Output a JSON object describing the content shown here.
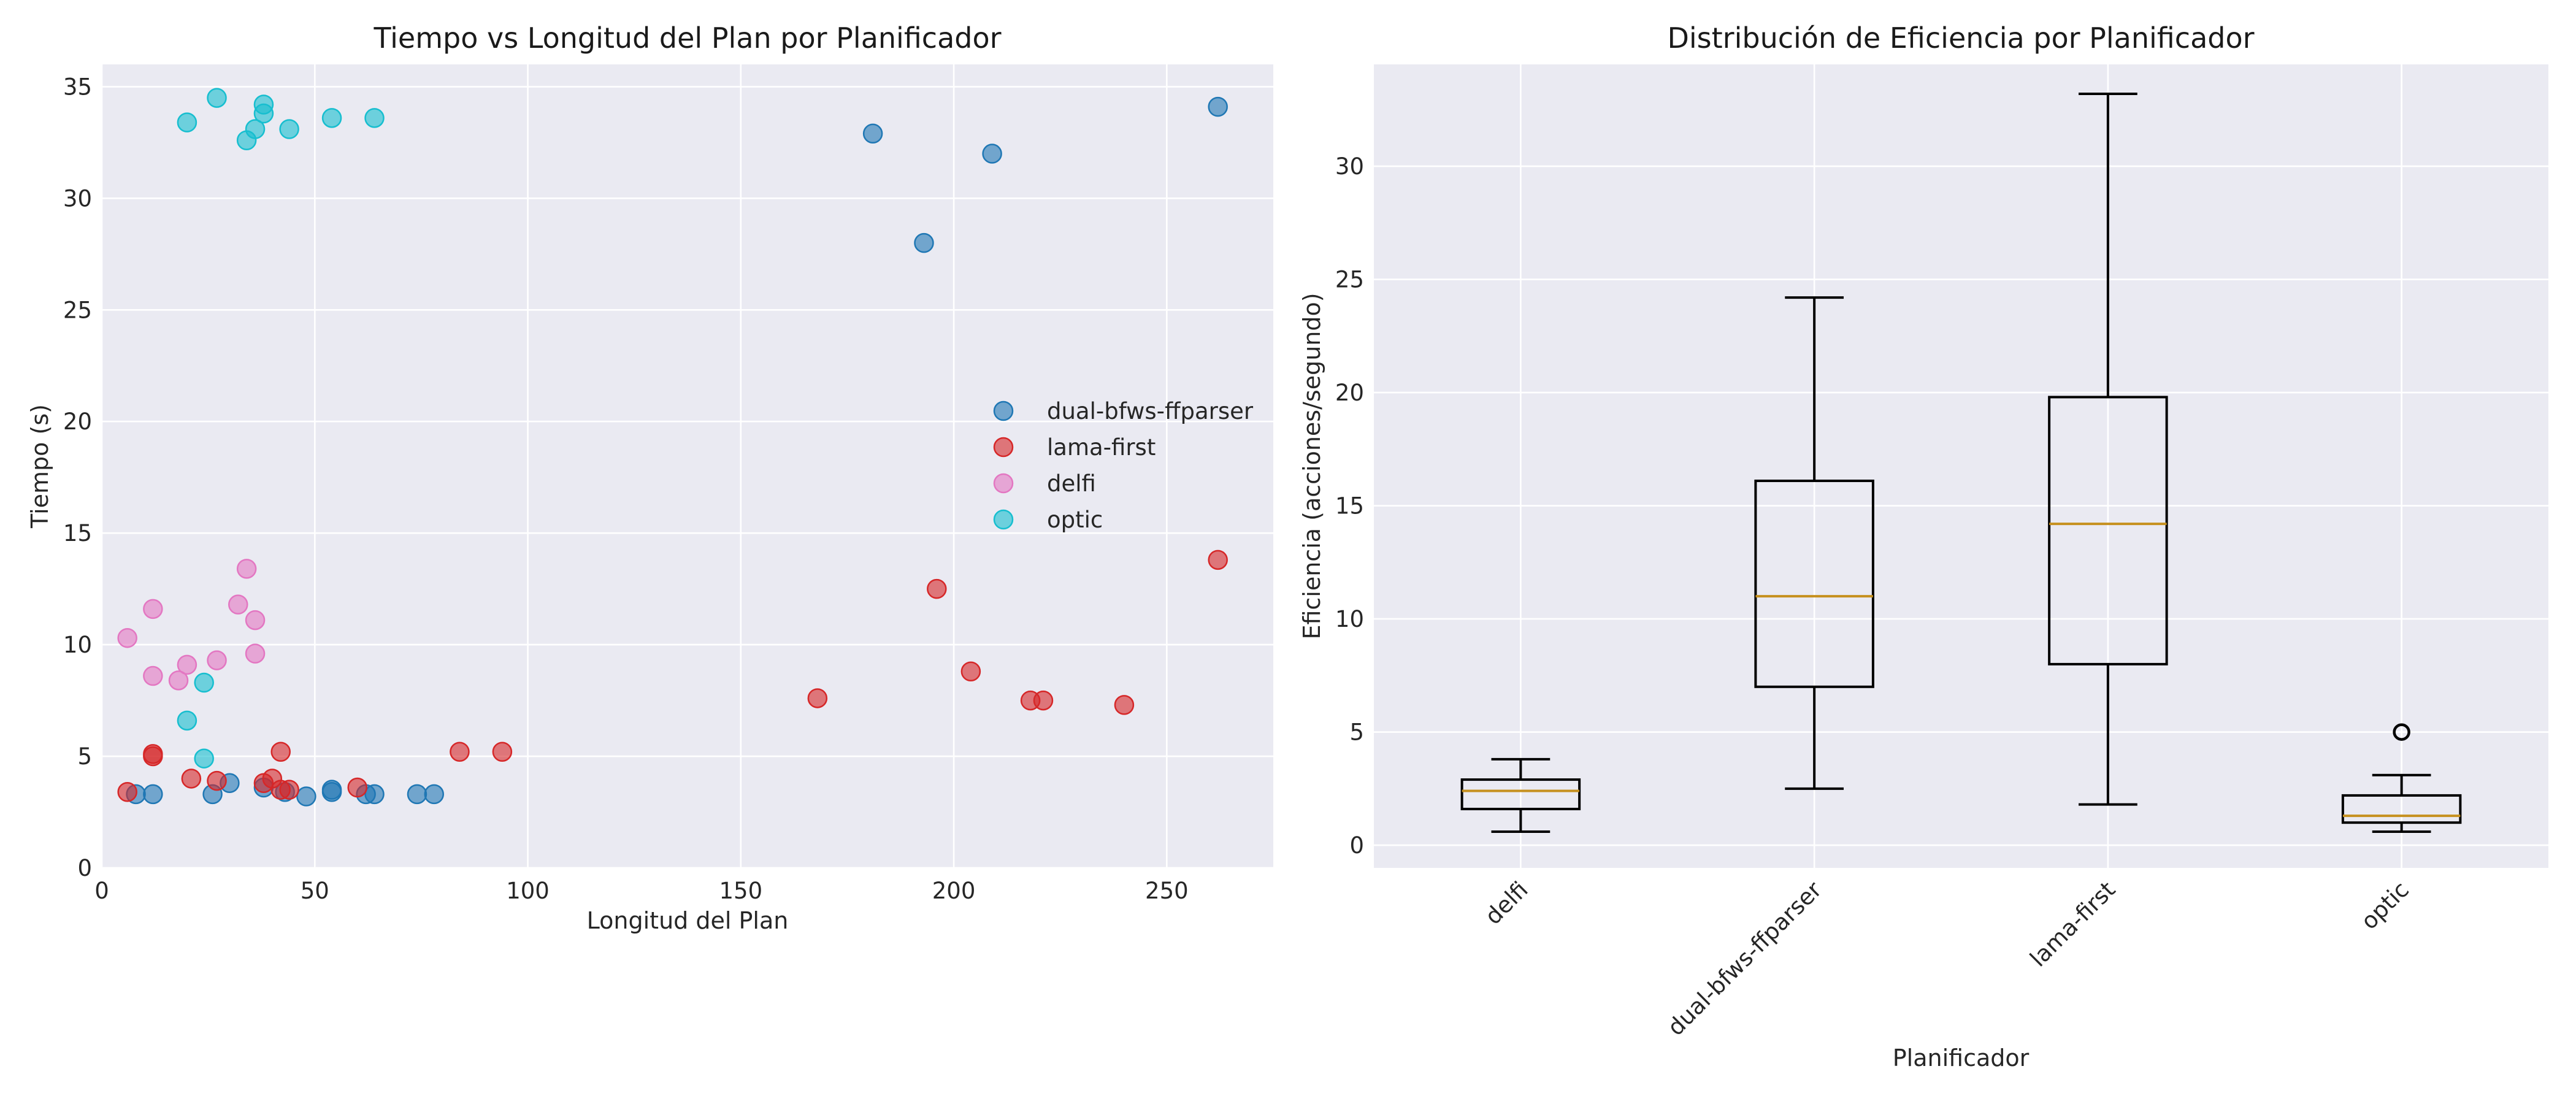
{
  "chart_data": [
    {
      "type": "scatter",
      "title": "Tiempo vs Longitud del Plan por Planificador",
      "xlabel": "Longitud del Plan",
      "ylabel": "Tiempo (s)",
      "xlim": [
        0,
        275
      ],
      "ylim": [
        0,
        36
      ],
      "xticks": [
        0,
        50,
        100,
        150,
        200,
        250
      ],
      "yticks": [
        0,
        5,
        10,
        15,
        20,
        25,
        30,
        35
      ],
      "grid": true,
      "legend_position": "center-right",
      "series": [
        {
          "name": "dual-bfws-ffparser",
          "color": "#1f77b4",
          "x": [
            8,
            12,
            26,
            30,
            38,
            43,
            48,
            54,
            54,
            62,
            64,
            74,
            78,
            181,
            193,
            209,
            262
          ],
          "y": [
            3.3,
            3.3,
            3.3,
            3.8,
            3.6,
            3.4,
            3.2,
            3.4,
            3.5,
            3.3,
            3.3,
            3.3,
            3.3,
            32.9,
            28.0,
            32.0,
            34.1
          ]
        },
        {
          "name": "lama-first",
          "color": "#d62728",
          "x": [
            6,
            12,
            12,
            21,
            27,
            38,
            40,
            42,
            42,
            44,
            60,
            84,
            94,
            168,
            196,
            204,
            218,
            221,
            240,
            262
          ],
          "y": [
            3.4,
            5.0,
            5.1,
            4.0,
            3.9,
            3.8,
            4.0,
            5.2,
            3.5,
            3.5,
            3.6,
            5.2,
            5.2,
            7.6,
            12.5,
            8.8,
            7.5,
            7.5,
            7.3,
            13.8
          ]
        },
        {
          "name": "delfi",
          "color": "#e377c2",
          "x": [
            6,
            12,
            12,
            18,
            20,
            27,
            32,
            34,
            36,
            36
          ],
          "y": [
            10.3,
            11.6,
            8.6,
            8.4,
            9.1,
            9.3,
            11.8,
            13.4,
            11.1,
            9.6
          ]
        },
        {
          "name": "optic",
          "color": "#17becf",
          "x": [
            20,
            27,
            34,
            36,
            38,
            38,
            44,
            54,
            64,
            20,
            24,
            24
          ],
          "y": [
            33.4,
            34.5,
            32.6,
            33.1,
            34.2,
            33.8,
            33.1,
            33.6,
            33.6,
            6.6,
            8.3,
            4.9
          ]
        }
      ]
    },
    {
      "type": "box",
      "title": "Distribución de Eficiencia por Planificador",
      "xlabel": "Planificador",
      "ylabel": "Eficiencia (acciones/segundo)",
      "ylim": [
        -1,
        34.5
      ],
      "yticks": [
        0,
        5,
        10,
        15,
        20,
        25,
        30
      ],
      "grid": true,
      "categories": [
        "delfi",
        "dual-bfws-ffparser",
        "lama-first",
        "optic"
      ],
      "boxes": [
        {
          "whislo": 0.6,
          "q1": 1.6,
          "med": 2.4,
          "q3": 2.9,
          "whishi": 3.8,
          "fliers": []
        },
        {
          "whislo": 2.5,
          "q1": 7.0,
          "med": 11.0,
          "q3": 16.1,
          "whishi": 24.2,
          "fliers": []
        },
        {
          "whislo": 1.8,
          "q1": 8.0,
          "med": 14.2,
          "q3": 19.8,
          "whishi": 33.2,
          "fliers": []
        },
        {
          "whislo": 0.6,
          "q1": 1.0,
          "med": 1.3,
          "q3": 2.2,
          "whishi": 3.1,
          "fliers": [
            5.0
          ]
        }
      ]
    }
  ]
}
